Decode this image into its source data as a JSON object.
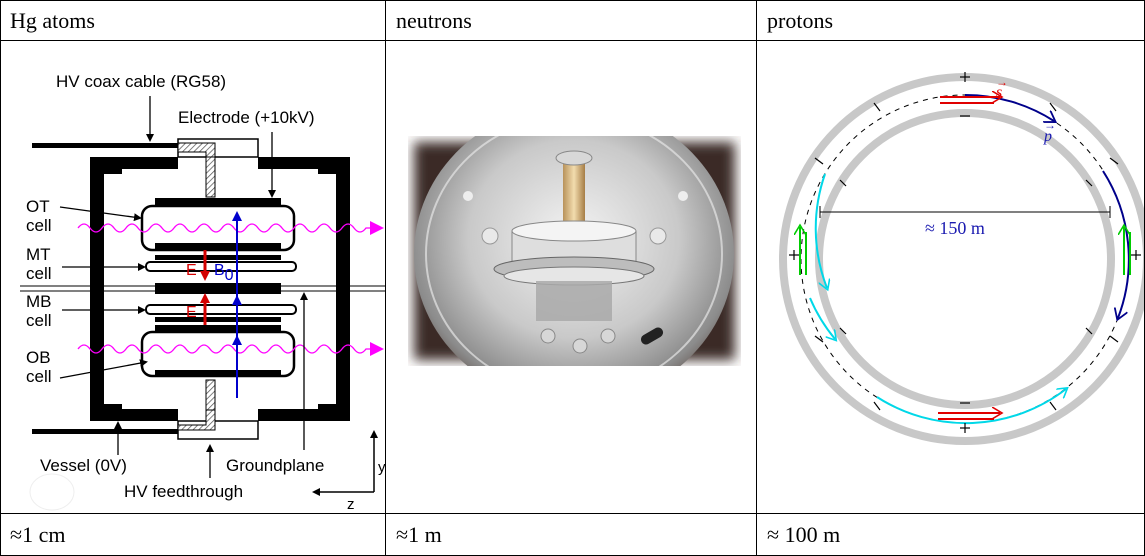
{
  "headers": [
    "Hg atoms",
    "neutrons",
    "protons"
  ],
  "footers": [
    "≈1 cm",
    "≈1 m",
    "≈ 100 m"
  ],
  "hg_diagram": {
    "labels": {
      "coax": "HV coax cable (RG58)",
      "electrode": "Electrode (+10kV)",
      "ot_1": "OT",
      "ot_2": "cell",
      "mt_1": "MT",
      "mt_2": "cell",
      "mb_1": "MB",
      "mb_2": "cell",
      "ob_1": "OB",
      "ob_2": "cell",
      "e_top": "E",
      "e_bottom": "E",
      "b_field": "B",
      "b_sub": "0",
      "vessel": "Vessel (0V)",
      "groundplane": "Groundplane",
      "feedthrough": "HV feedthrough",
      "axis_y": "y",
      "axis_z": "z"
    },
    "colors": {
      "e_field": "#d40000",
      "b_field": "#0000cc",
      "wave": "#ff00ff"
    }
  },
  "neutron_photo": {
    "alt": "neutron EDM chamber photo",
    "icon": "photo-icon"
  },
  "proton_ring": {
    "diameter_label": "≈ 150 m",
    "spin_label": "s",
    "momentum_label": "p",
    "colors": {
      "ring": "#c8c8c8",
      "spin": "#e00000",
      "momentum": "#00008b",
      "cyan": "#00d8e8",
      "green": "#00cc00",
      "diameter": "#1a1ab0"
    }
  }
}
